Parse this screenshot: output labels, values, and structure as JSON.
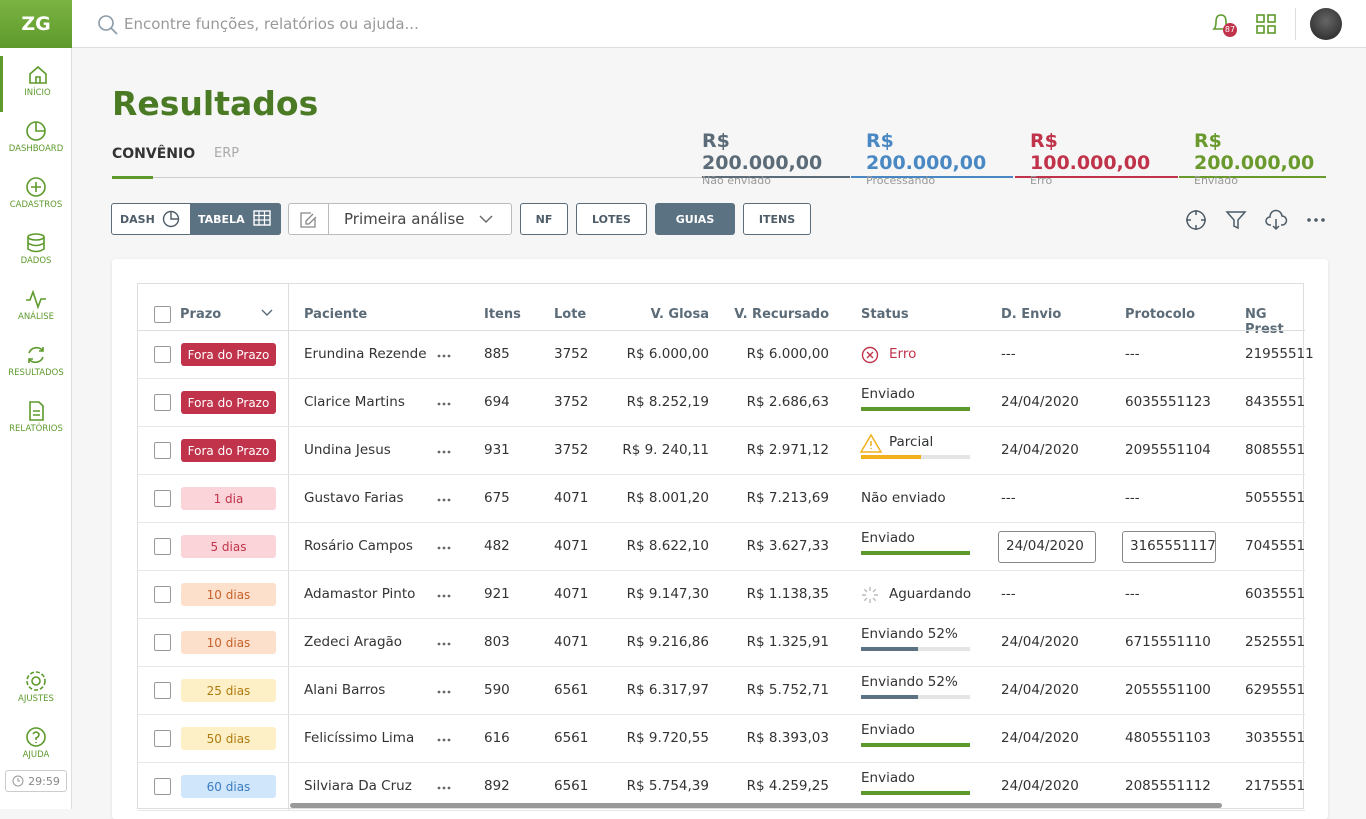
{
  "app": {
    "logo": "ZG",
    "search_placeholder": "Encontre funções, relatórios ou ajuda...",
    "notifications": "87"
  },
  "sidebar": {
    "items": [
      "INÍCIO",
      "DASHBOARD",
      "CADASTROS",
      "DADOS",
      "ANÁLISE",
      "RESULTADOS",
      "RELATÓRIOS"
    ],
    "bottom": [
      "AJUSTES",
      "AJUDA"
    ],
    "timer": "29:59"
  },
  "header": {
    "title": "Resultados",
    "tabs": [
      "CONVÊNIO",
      "ERP"
    ]
  },
  "summary": [
    {
      "amount": "R$ 200.000,00",
      "label": "Não enviado",
      "color": "#5b6b78"
    },
    {
      "amount": "R$ 200.000,00",
      "label": "Processando",
      "color": "#4a88c4"
    },
    {
      "amount": "R$ 100.000,00",
      "label": "Erro",
      "color": "#c0334a"
    },
    {
      "amount": "R$ 200.000,00",
      "label": "Enviado",
      "color": "#6a9a2e"
    }
  ],
  "toolbar": {
    "view": [
      "DASH",
      "TABELA"
    ],
    "analysis": "Primeira análise",
    "buttons": [
      "NF",
      "LOTES",
      "GUIAS",
      "ITENS"
    ]
  },
  "table": {
    "columns": [
      "Prazo",
      "Paciente",
      "Itens",
      "Lote",
      "V. Glosa",
      "V. Recursado",
      "Status",
      "D. Envio",
      "Protocolo",
      "NG Prest"
    ],
    "rows": [
      {
        "prazo": "Fora do Prazo",
        "tone": "danger",
        "paciente": "Erundina Rezende",
        "itens": "885",
        "lote": "3752",
        "glosa": "R$ 6.000,00",
        "recursado": "R$ 6.000,00",
        "status": "Erro",
        "kind": "error",
        "envio": "---",
        "protocolo": "---",
        "ng": "21955511"
      },
      {
        "prazo": "Fora do Prazo",
        "tone": "danger",
        "paciente": "Clarice Martins",
        "itens": "694",
        "lote": "3752",
        "glosa": "R$ 8.252,19",
        "recursado": "R$ 2.686,63",
        "status": "Enviado",
        "kind": "sent",
        "progress": 100,
        "envio": "24/04/2020",
        "protocolo": "6035551123",
        "ng": "8435551"
      },
      {
        "prazo": "Fora do Prazo",
        "tone": "danger",
        "paciente": "Undina Jesus",
        "itens": "931",
        "lote": "3752",
        "glosa": "R$ 9. 240,11",
        "recursado": "R$ 2.971,12",
        "status": "Parcial",
        "kind": "partial",
        "progress": 55,
        "envio": "24/04/2020",
        "protocolo": "2095551104",
        "ng": "8085551"
      },
      {
        "prazo": "1 dia",
        "tone": "pink",
        "paciente": "Gustavo Farias",
        "itens": "675",
        "lote": "4071",
        "glosa": "R$ 8.001,20",
        "recursado": "R$ 7.213,69",
        "status": "Não enviado",
        "kind": "none",
        "envio": "---",
        "protocolo": "---",
        "ng": "5055551"
      },
      {
        "prazo": "5 dias",
        "tone": "pink",
        "paciente": "Rosário Campos",
        "itens": "482",
        "lote": "4071",
        "glosa": "R$ 8.622,10",
        "recursado": "R$ 3.627,33",
        "status": "Enviado",
        "kind": "sent",
        "progress": 100,
        "envio": "24/04/2020",
        "protocolo": "3165551117",
        "ng": "7045551",
        "editable": true
      },
      {
        "prazo": "10 dias",
        "tone": "orange",
        "paciente": "Adamastor Pinto",
        "itens": "921",
        "lote": "4071",
        "glosa": "R$ 9.147,30",
        "recursado": "R$ 1.138,35",
        "status": "Aguardando",
        "kind": "waiting",
        "envio": "---",
        "protocolo": "---",
        "ng": "6035551"
      },
      {
        "prazo": "10 dias",
        "tone": "orange",
        "paciente": "Zedeci Aragão",
        "itens": "803",
        "lote": "4071",
        "glosa": "R$ 9.216,86",
        "recursado": "R$ 1.325,91",
        "status": "Enviando 52%",
        "kind": "sending",
        "progress": 52,
        "envio": "24/04/2020",
        "protocolo": "6715551110",
        "ng": "2525551"
      },
      {
        "prazo": "25 dias",
        "tone": "yellow",
        "paciente": "Alani Barros",
        "itens": "590",
        "lote": "6561",
        "glosa": "R$ 6.317,97",
        "recursado": "R$ 5.752,71",
        "status": "Enviando 52%",
        "kind": "sending",
        "progress": 52,
        "envio": "24/04/2020",
        "protocolo": "2055551100",
        "ng": "6295551"
      },
      {
        "prazo": "50 dias",
        "tone": "yellow",
        "paciente": "Felicíssimo Lima",
        "itens": "616",
        "lote": "6561",
        "glosa": "R$ 9.720,55",
        "recursado": "R$ 8.393,03",
        "status": "Enviado",
        "kind": "sent",
        "progress": 100,
        "envio": "24/04/2020",
        "protocolo": "4805551103",
        "ng": "3035551"
      },
      {
        "prazo": "60 dias",
        "tone": "blue",
        "paciente": "Silviara Da Cruz",
        "itens": "892",
        "lote": "6561",
        "glosa": "R$ 5.754,39",
        "recursado": "R$ 4.259,25",
        "status": "Enviado",
        "kind": "sent",
        "progress": 100,
        "envio": "24/04/2020",
        "protocolo": "2085551112",
        "ng": "2175551"
      }
    ]
  }
}
